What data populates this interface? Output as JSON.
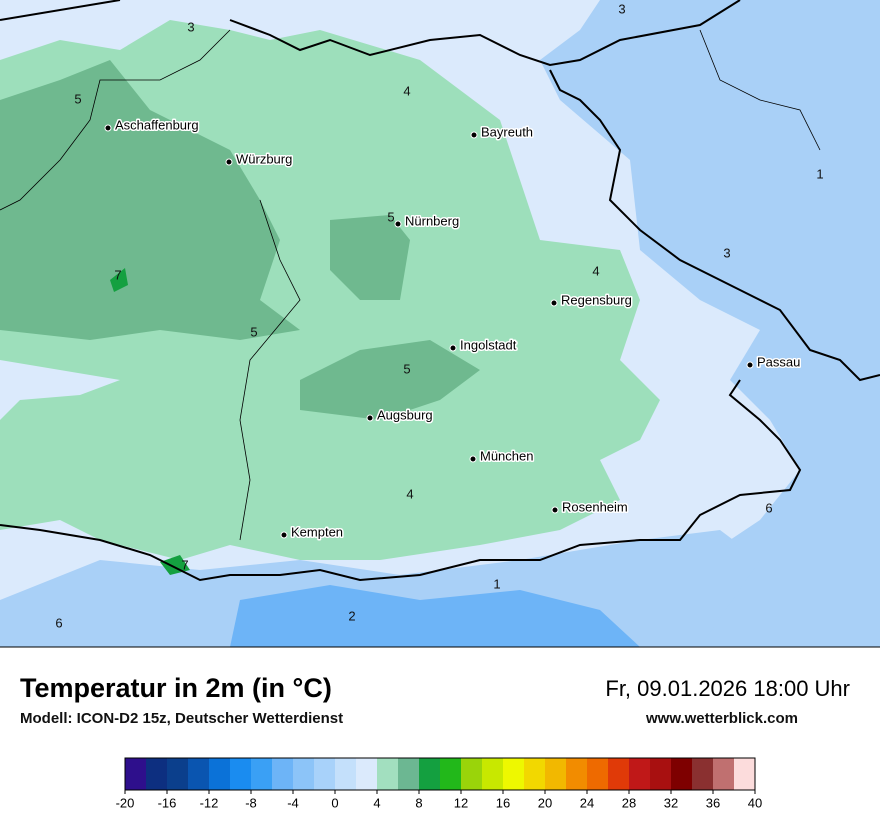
{
  "header": {
    "title": "Temperatur in 2m (in °C)",
    "model": "Modell: ICON-D2 15z, Deutscher Wetterdienst",
    "valid_time": "Fr, 09.01.2026 18:00 Uhr",
    "website": "www.wetterblick.com"
  },
  "cities": [
    "Aschaffenburg",
    "Würzburg",
    "Bayreuth",
    "Nürnberg",
    "Regensburg",
    "Ingolstadt",
    "Passau",
    "Augsburg",
    "München",
    "Rosenheim",
    "Kempten"
  ],
  "map_labels": [
    3,
    3,
    5,
    4,
    1,
    5,
    7,
    4,
    3,
    5,
    5,
    4,
    6,
    7,
    1,
    2,
    6
  ],
  "colorbar": {
    "ticks": [
      -20,
      -16,
      -12,
      -8,
      -4,
      0,
      4,
      8,
      12,
      16,
      20,
      24,
      28,
      32,
      36,
      40
    ],
    "colors": [
      "#2e0f8c",
      "#0d2f80",
      "#0b3f8c",
      "#0a55b0",
      "#0b72d8",
      "#1a8cf0",
      "#3aa0f5",
      "#6db4f7",
      "#8cc4f8",
      "#a8d2fa",
      "#c4e0fb",
      "#dbeafc",
      "#a2dfbf",
      "#6cb792",
      "#14a040",
      "#22b81a",
      "#9ad40a",
      "#c8e800",
      "#eef800",
      "#f2d800",
      "#f2b800",
      "#f28c00",
      "#ee6a00",
      "#e03a08",
      "#c01818",
      "#a81010",
      "#7e0000",
      "#8a3030",
      "#c07070",
      "#fcdcdc"
    ]
  }
}
